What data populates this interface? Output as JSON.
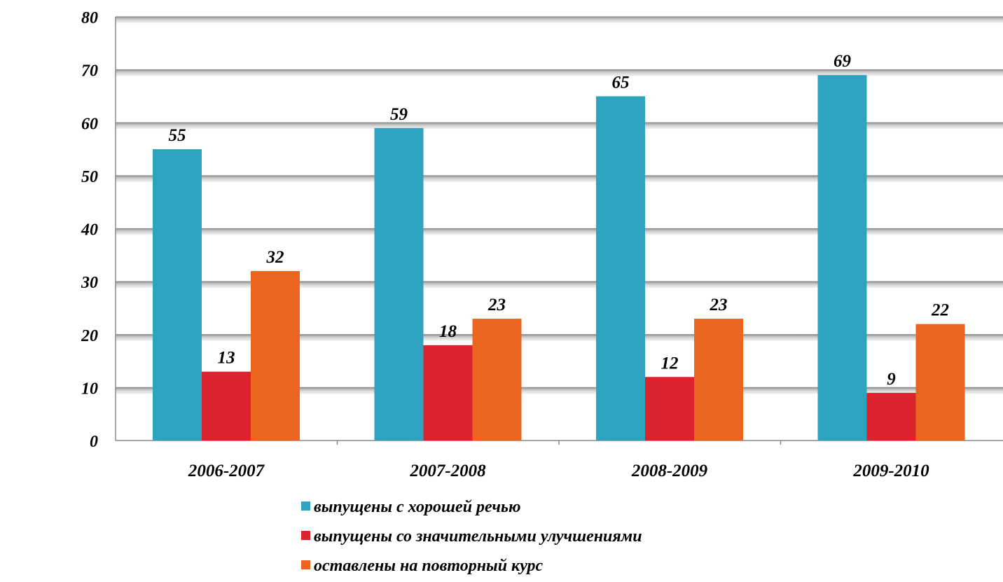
{
  "chart_data": {
    "type": "bar",
    "title": "",
    "xlabel": "",
    "ylabel": "",
    "ylim": [
      0,
      80
    ],
    "yticks": [
      0,
      10,
      20,
      30,
      40,
      50,
      60,
      70,
      80
    ],
    "grid": true,
    "legend": "bottom",
    "categories": [
      "2006-2007",
      "2007-2008",
      "2008-2009",
      "2009-2010"
    ],
    "series": [
      {
        "name": "выпущены с хорошей речью",
        "color": "#2ea3c0",
        "values": [
          55,
          59,
          65,
          69
        ]
      },
      {
        "name": "выпущены со значительными улучшениями",
        "color": "#dc222c",
        "values": [
          13,
          18,
          12,
          9
        ]
      },
      {
        "name": "оставлены на повторный курс",
        "color": "#eb651e",
        "values": [
          32,
          23,
          23,
          22
        ]
      }
    ]
  }
}
